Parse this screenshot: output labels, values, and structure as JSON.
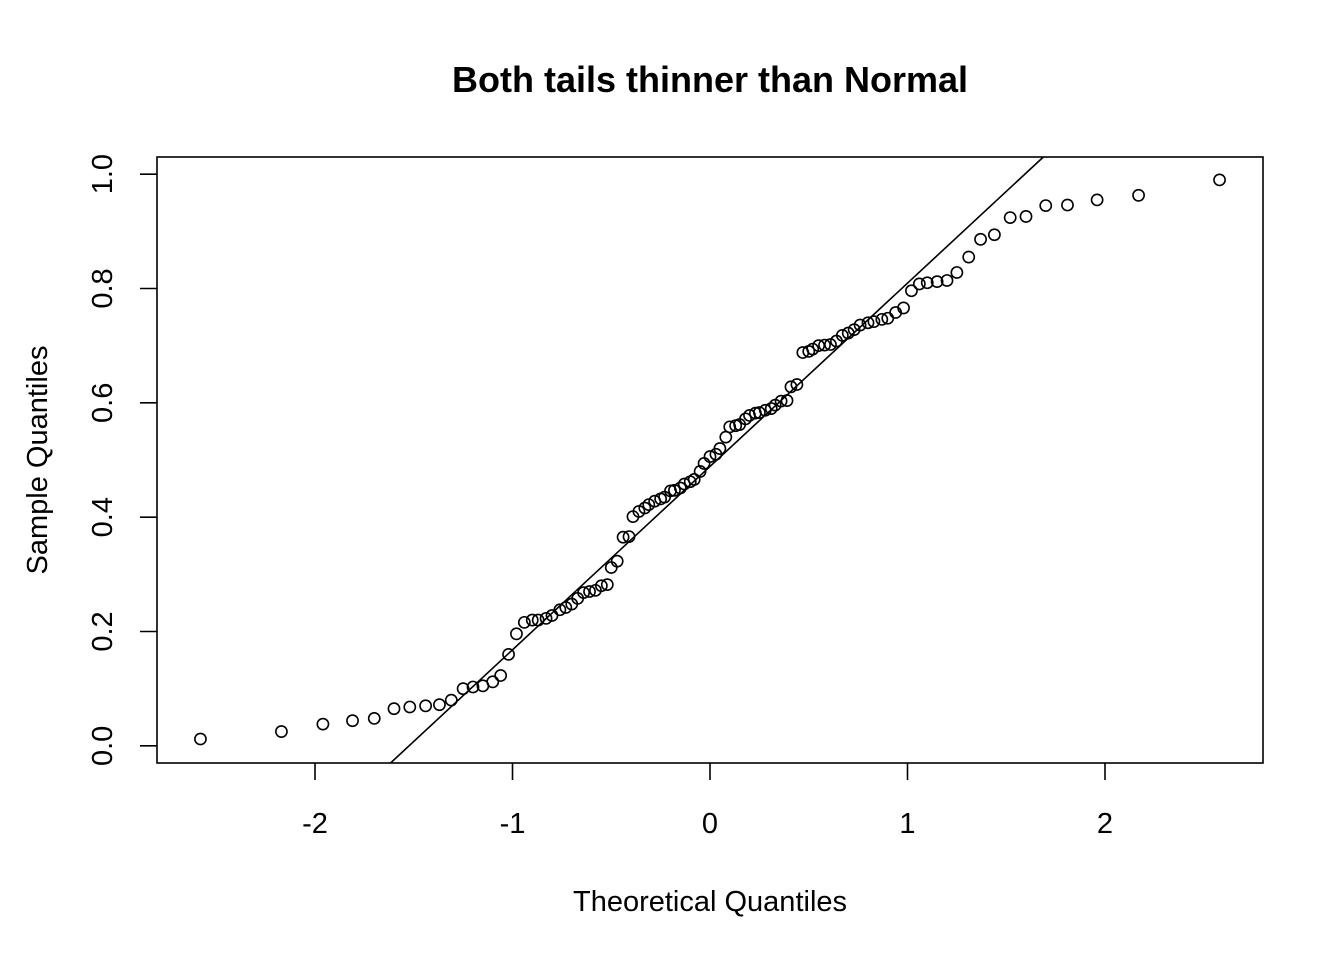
{
  "chart_data": {
    "type": "scatter",
    "title": "Both tails thinner than Normal",
    "xlabel": "Theoretical Quantiles",
    "ylabel": "Sample Quantiles",
    "xlim": [
      -2.8,
      2.8
    ],
    "ylim": [
      -0.03,
      1.03
    ],
    "x_ticks": [
      -2,
      -1,
      0,
      1,
      2
    ],
    "x_tick_labels": [
      "-2",
      "-1",
      "0",
      "1",
      "2"
    ],
    "y_ticks": [
      0.0,
      0.2,
      0.4,
      0.6,
      0.8,
      1.0
    ],
    "y_tick_labels": [
      "0.0",
      "0.2",
      "0.4",
      "0.6",
      "0.8",
      "1.0"
    ],
    "grid": false,
    "legend": "none",
    "reference_line": {
      "intercept": 0.4887,
      "slope": 0.3207
    },
    "points": [
      [
        -2.58,
        0.012
      ],
      [
        -2.17,
        0.025
      ],
      [
        -1.96,
        0.038
      ],
      [
        -1.81,
        0.044
      ],
      [
        -1.7,
        0.048
      ],
      [
        -1.6,
        0.065
      ],
      [
        -1.52,
        0.068
      ],
      [
        -1.44,
        0.07
      ],
      [
        -1.37,
        0.072
      ],
      [
        -1.31,
        0.08
      ],
      [
        -1.25,
        0.1
      ],
      [
        -1.2,
        0.103
      ],
      [
        -1.15,
        0.105
      ],
      [
        -1.1,
        0.112
      ],
      [
        -1.06,
        0.123
      ],
      [
        -1.02,
        0.16
      ],
      [
        -0.98,
        0.196
      ],
      [
        -0.94,
        0.216
      ],
      [
        -0.9,
        0.22
      ],
      [
        -0.87,
        0.22
      ],
      [
        -0.83,
        0.223
      ],
      [
        -0.8,
        0.228
      ],
      [
        -0.76,
        0.238
      ],
      [
        -0.73,
        0.242
      ],
      [
        -0.7,
        0.248
      ],
      [
        -0.67,
        0.258
      ],
      [
        -0.64,
        0.268
      ],
      [
        -0.61,
        0.27
      ],
      [
        -0.58,
        0.272
      ],
      [
        -0.55,
        0.28
      ],
      [
        -0.52,
        0.282
      ],
      [
        -0.5,
        0.312
      ],
      [
        -0.47,
        0.323
      ],
      [
        -0.44,
        0.365
      ],
      [
        -0.41,
        0.366
      ],
      [
        -0.39,
        0.401
      ],
      [
        -0.36,
        0.41
      ],
      [
        -0.33,
        0.416
      ],
      [
        -0.31,
        0.422
      ],
      [
        -0.28,
        0.428
      ],
      [
        -0.25,
        0.432
      ],
      [
        -0.23,
        0.435
      ],
      [
        -0.2,
        0.446
      ],
      [
        -0.18,
        0.447
      ],
      [
        -0.15,
        0.451
      ],
      [
        -0.13,
        0.458
      ],
      [
        -0.1,
        0.462
      ],
      [
        -0.08,
        0.466
      ],
      [
        -0.05,
        0.48
      ],
      [
        -0.03,
        0.494
      ],
      [
        0.0,
        0.506
      ],
      [
        0.03,
        0.51
      ],
      [
        0.05,
        0.52
      ],
      [
        0.08,
        0.54
      ],
      [
        0.1,
        0.558
      ],
      [
        0.13,
        0.56
      ],
      [
        0.15,
        0.562
      ],
      [
        0.18,
        0.572
      ],
      [
        0.2,
        0.578
      ],
      [
        0.23,
        0.582
      ],
      [
        0.25,
        0.583
      ],
      [
        0.28,
        0.587
      ],
      [
        0.31,
        0.59
      ],
      [
        0.33,
        0.596
      ],
      [
        0.36,
        0.603
      ],
      [
        0.39,
        0.604
      ],
      [
        0.41,
        0.628
      ],
      [
        0.44,
        0.632
      ],
      [
        0.47,
        0.688
      ],
      [
        0.5,
        0.69
      ],
      [
        0.52,
        0.694
      ],
      [
        0.55,
        0.7
      ],
      [
        0.58,
        0.701
      ],
      [
        0.61,
        0.702
      ],
      [
        0.64,
        0.708
      ],
      [
        0.67,
        0.718
      ],
      [
        0.7,
        0.722
      ],
      [
        0.73,
        0.728
      ],
      [
        0.76,
        0.736
      ],
      [
        0.8,
        0.74
      ],
      [
        0.83,
        0.742
      ],
      [
        0.87,
        0.746
      ],
      [
        0.9,
        0.748
      ],
      [
        0.94,
        0.758
      ],
      [
        0.98,
        0.766
      ],
      [
        1.02,
        0.796
      ],
      [
        1.06,
        0.808
      ],
      [
        1.1,
        0.81
      ],
      [
        1.15,
        0.812
      ],
      [
        1.2,
        0.814
      ],
      [
        1.25,
        0.828
      ],
      [
        1.31,
        0.855
      ],
      [
        1.37,
        0.886
      ],
      [
        1.44,
        0.894
      ],
      [
        1.52,
        0.924
      ],
      [
        1.6,
        0.926
      ],
      [
        1.7,
        0.945
      ],
      [
        1.81,
        0.946
      ],
      [
        1.96,
        0.955
      ],
      [
        2.17,
        0.963
      ],
      [
        2.58,
        0.99
      ]
    ]
  }
}
